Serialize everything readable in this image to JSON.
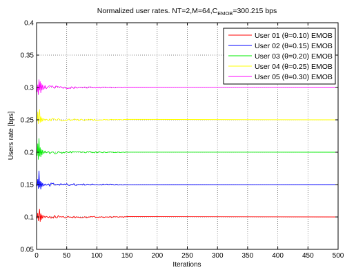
{
  "chart_data": {
    "type": "line",
    "title": "Normalized user rates. NT=2,M=64,C",
    "title_sub": "EMOB",
    "title_tail": "=300.215 bps",
    "xlabel": "Iterations",
    "ylabel": "Users rate [bps]",
    "xlim": [
      0,
      500
    ],
    "ylim": [
      0.05,
      0.4
    ],
    "xticks": [
      0,
      50,
      100,
      150,
      200,
      250,
      300,
      350,
      400,
      450,
      500
    ],
    "yticks": [
      0.05,
      0.1,
      0.15,
      0.2,
      0.25,
      0.3,
      0.35,
      0.4
    ],
    "xtick_labels": [
      "0",
      "50",
      "100",
      "150",
      "200",
      "250",
      "300",
      "350",
      "400",
      "450",
      "500"
    ],
    "ytick_labels": [
      "0.05",
      "0.1",
      "0.15",
      "0.2",
      "0.25",
      "0.3",
      "0.35",
      "0.4"
    ],
    "grid": true,
    "legend_position": "top-right",
    "series": [
      {
        "name": "User 01 (θ=0.10) EMOB",
        "color": "#ff0000",
        "steady": 0.1,
        "early": [
          [
            1,
            0.098
          ],
          [
            2,
            0.106
          ],
          [
            3,
            0.094
          ],
          [
            4,
            0.104
          ],
          [
            5,
            0.112
          ],
          [
            6,
            0.093
          ],
          [
            7,
            0.105
          ],
          [
            8,
            0.096
          ],
          [
            9,
            0.103
          ],
          [
            10,
            0.098
          ],
          [
            12,
            0.102
          ],
          [
            14,
            0.099
          ],
          [
            16,
            0.101
          ],
          [
            20,
            0.099
          ]
        ]
      },
      {
        "name": "User 02 (θ=0.15) EMOB",
        "color": "#0000ff",
        "steady": 0.15,
        "early": [
          [
            1,
            0.148
          ],
          [
            2,
            0.158
          ],
          [
            3,
            0.144
          ],
          [
            4,
            0.171
          ],
          [
            5,
            0.146
          ],
          [
            6,
            0.155
          ],
          [
            7,
            0.143
          ],
          [
            8,
            0.154
          ],
          [
            9,
            0.147
          ],
          [
            10,
            0.152
          ],
          [
            12,
            0.148
          ],
          [
            14,
            0.151
          ],
          [
            16,
            0.149
          ],
          [
            20,
            0.151
          ]
        ]
      },
      {
        "name": "User 03 (θ=0.20) EMOB",
        "color": "#00ee00",
        "steady": 0.2,
        "early": [
          [
            1,
            0.195
          ],
          [
            2,
            0.213
          ],
          [
            3,
            0.189
          ],
          [
            4,
            0.221
          ],
          [
            5,
            0.194
          ],
          [
            6,
            0.207
          ],
          [
            7,
            0.193
          ],
          [
            8,
            0.204
          ],
          [
            9,
            0.196
          ],
          [
            10,
            0.203
          ],
          [
            12,
            0.198
          ],
          [
            14,
            0.202
          ],
          [
            16,
            0.199
          ],
          [
            20,
            0.201
          ]
        ]
      },
      {
        "name": "User 04 (θ=0.25) EMOB",
        "color": "#ffff00",
        "steady": 0.25,
        "early": [
          [
            1,
            0.248
          ],
          [
            2,
            0.262
          ],
          [
            3,
            0.244
          ],
          [
            4,
            0.257
          ],
          [
            5,
            0.266
          ],
          [
            6,
            0.246
          ],
          [
            7,
            0.255
          ],
          [
            8,
            0.247
          ],
          [
            9,
            0.253
          ],
          [
            10,
            0.248
          ],
          [
            12,
            0.252
          ],
          [
            14,
            0.249
          ],
          [
            16,
            0.251
          ],
          [
            20,
            0.249
          ]
        ]
      },
      {
        "name": "User 05 (θ=0.30) EMOB",
        "color": "#ff00ff",
        "steady": 0.3,
        "early": [
          [
            1,
            0.293
          ],
          [
            2,
            0.304
          ],
          [
            3,
            0.289
          ],
          [
            4,
            0.312
          ],
          [
            5,
            0.296
          ],
          [
            6,
            0.309
          ],
          [
            7,
            0.292
          ],
          [
            8,
            0.306
          ],
          [
            9,
            0.296
          ],
          [
            10,
            0.304
          ],
          [
            12,
            0.297
          ],
          [
            14,
            0.303
          ],
          [
            16,
            0.298
          ],
          [
            20,
            0.302
          ]
        ]
      }
    ]
  }
}
